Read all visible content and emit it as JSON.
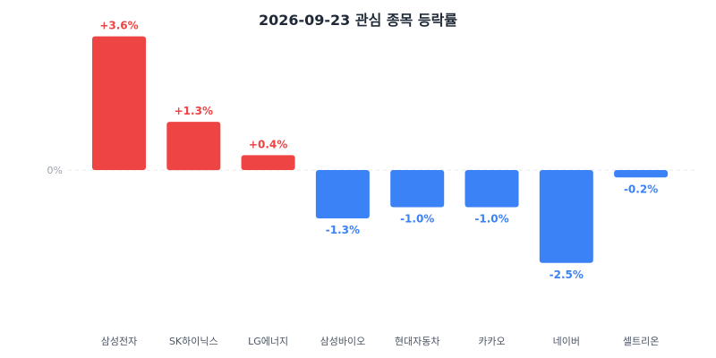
{
  "chart_data": {
    "type": "bar",
    "title": "2026-09-23 관심 종목 등락률",
    "categories": [
      "삼성전자",
      "SK하이닉스",
      "LG에너지",
      "삼성바이오",
      "현대자동차",
      "카카오",
      "네이버",
      "셀트리온"
    ],
    "values": [
      3.6,
      1.3,
      0.4,
      -1.3,
      -1.0,
      -1.0,
      -2.5,
      -0.2
    ],
    "value_labels": [
      "+3.6%",
      "+1.3%",
      "+0.4%",
      "-1.3%",
      "-1.0%",
      "-1.0%",
      "-2.5%",
      "-0.2%"
    ],
    "zero_label": "0%",
    "ylim": [
      -4,
      4
    ],
    "grid": false,
    "colors": {
      "positive": "#ef4444",
      "negative": "#3b82f6",
      "zero_line": "#e5e7eb"
    }
  }
}
